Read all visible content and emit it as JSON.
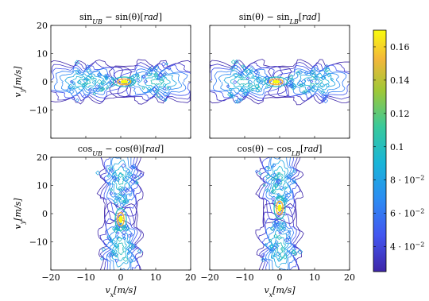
{
  "chart_data": [
    {
      "type": "contour",
      "title": "sin_UB − sin(θ)[rad]",
      "title_parts": {
        "base": "sin",
        "sub": "UB",
        "rest": " − sin(θ)[",
        "unit": "rad",
        "close": "]"
      },
      "ylabel": "v_y[m/s]",
      "ylabel_parts": {
        "base": "v",
        "sub": "y",
        "rest": "[m/s]"
      },
      "xlim": [
        -20,
        20
      ],
      "ylim": [
        -20,
        20
      ],
      "xticks": [],
      "yticks": [
        "20",
        "10",
        "0",
        "−10"
      ],
      "hotspot": {
        "x": 1,
        "y": 0,
        "pattern": "horizontal"
      }
    },
    {
      "type": "contour",
      "title": "sin(θ) − sin_LB[rad]",
      "title_parts": {
        "base": "sin(θ) − sin",
        "sub": "LB",
        "rest": "[",
        "unit": "rad",
        "close": "]"
      },
      "xlim": [
        -20,
        20
      ],
      "ylim": [
        -20,
        20
      ],
      "xticks": [],
      "yticks": [],
      "hotspot": {
        "x": -1,
        "y": 0,
        "pattern": "horizontal"
      }
    },
    {
      "type": "contour",
      "title": "cos_UB − cos(θ)[rad]",
      "title_parts": {
        "base": "cos",
        "sub": "UB",
        "rest": " − cos(θ)[",
        "unit": "rad",
        "close": "]"
      },
      "ylabel": "v_y[m/s]",
      "ylabel_parts": {
        "base": "v",
        "sub": "y",
        "rest": "[m/s]"
      },
      "xlabel": "v_x[m/s]",
      "xlabel_parts": {
        "base": "v",
        "sub": "x",
        "rest": "[m/s]"
      },
      "xlim": [
        -20,
        20
      ],
      "ylim": [
        -20,
        20
      ],
      "xticks": [
        "−20",
        "−10",
        "0",
        "10",
        "20"
      ],
      "yticks": [
        "20",
        "10",
        "0",
        "−10"
      ],
      "hotspot": {
        "x": 0,
        "y": -2,
        "pattern": "vertical"
      }
    },
    {
      "type": "contour",
      "title": "cos(θ) − cos_LB[rad]",
      "title_parts": {
        "base": "cos(θ) − cos",
        "sub": "LB",
        "rest": "[",
        "unit": "rad",
        "close": "]"
      },
      "xlabel": "v_x[m/s]",
      "xlabel_parts": {
        "base": "v",
        "sub": "x",
        "rest": "[m/s]"
      },
      "xlim": [
        -20,
        20
      ],
      "ylim": [
        -20,
        20
      ],
      "xticks": [
        "−20",
        "−10",
        "0",
        "10",
        "20"
      ],
      "yticks": [],
      "hotspot": {
        "x": 0,
        "y": 2,
        "pattern": "vertical"
      }
    }
  ],
  "colorbar": {
    "colormap": "parula",
    "range": [
      0.025,
      0.17
    ],
    "ticks": [
      {
        "value": 0.16,
        "label": "0.16"
      },
      {
        "value": 0.14,
        "label": "0.14"
      },
      {
        "value": 0.12,
        "label": "0.12"
      },
      {
        "value": 0.1,
        "label": "0.1"
      },
      {
        "value": 0.08,
        "label": "8 · 10",
        "exp": "−2"
      },
      {
        "value": 0.06,
        "label": "6 · 10",
        "exp": "−2"
      },
      {
        "value": 0.04,
        "label": "4 · 10",
        "exp": "−2"
      }
    ]
  },
  "colors": {
    "low": "#3e26a8",
    "mid": "#26bcb8",
    "high": "#f9fb0e",
    "orange": "#fbb532"
  }
}
